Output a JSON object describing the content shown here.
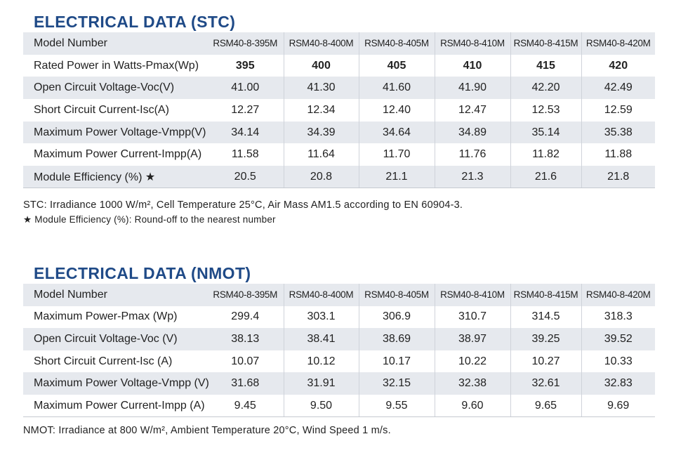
{
  "stc": {
    "title": "ELECTRICAL DATA (STC)",
    "header": {
      "label": "Model Number",
      "models": [
        "RSM40-8-395M",
        "RSM40-8-400M",
        "RSM40-8-405M",
        "RSM40-8-410M",
        "RSM40-8-415M",
        "RSM40-8-420M"
      ]
    },
    "rows": [
      {
        "label": "Rated Power in Watts-Pmax(Wp)",
        "values": [
          "395",
          "400",
          "405",
          "410",
          "415",
          "420"
        ]
      },
      {
        "label": "Open Circuit Voltage-Voc(V)",
        "values": [
          "41.00",
          "41.30",
          "41.60",
          "41.90",
          "42.20",
          "42.49"
        ]
      },
      {
        "label": "Short Circuit Current-Isc(A)",
        "values": [
          "12.27",
          "12.34",
          "12.40",
          "12.47",
          "12.53",
          "12.59"
        ]
      },
      {
        "label": "Maximum Power Voltage-Vmpp(V)",
        "values": [
          "34.14",
          "34.39",
          "34.64",
          "34.89",
          "35.14",
          "35.38"
        ]
      },
      {
        "label": "Maximum Power Current-Impp(A)",
        "values": [
          "11.58",
          "11.64",
          "11.70",
          "11.76",
          "11.82",
          "11.88"
        ]
      },
      {
        "label": "Module Efficiency (%) ★",
        "values": [
          "20.5",
          "20.8",
          "21.1",
          "21.3",
          "21.6",
          "21.8"
        ]
      }
    ],
    "note": "STC: Irradiance 1000 W/m², Cell Temperature 25°C, Air Mass AM1.5 according to EN 60904-3.",
    "efficiency_note": "★ Module Efficiency (%): Round-off to the nearest number"
  },
  "nmot": {
    "title": "ELECTRICAL DATA (NMOT)",
    "header": {
      "label": "Model Number",
      "models": [
        "RSM40-8-395M",
        "RSM40-8-400M",
        "RSM40-8-405M",
        "RSM40-8-410M",
        "RSM40-8-415M",
        "RSM40-8-420M"
      ]
    },
    "rows": [
      {
        "label": "Maximum Power-Pmax (Wp)",
        "values": [
          "299.4",
          "303.1",
          "306.9",
          "310.7",
          "314.5",
          "318.3"
        ]
      },
      {
        "label": "Open Circuit Voltage-Voc (V)",
        "values": [
          "38.13",
          "38.41",
          "38.69",
          "38.97",
          "39.25",
          "39.52"
        ]
      },
      {
        "label": "Short Circuit Current-Isc (A)",
        "values": [
          "10.07",
          "10.12",
          "10.17",
          "10.22",
          "10.27",
          "10.33"
        ]
      },
      {
        "label": "Maximum Power Voltage-Vmpp (V)",
        "values": [
          "31.68",
          "31.91",
          "32.15",
          "32.38",
          "32.61",
          "32.83"
        ]
      },
      {
        "label": "Maximum Power Current-Impp (A)",
        "values": [
          "9.45",
          "9.50",
          "9.55",
          "9.60",
          "9.65",
          "9.69"
        ]
      }
    ],
    "note": "NMOT: Irradiance at 800 W/m², Ambient Temperature 20°C, Wind Speed 1 m/s."
  }
}
